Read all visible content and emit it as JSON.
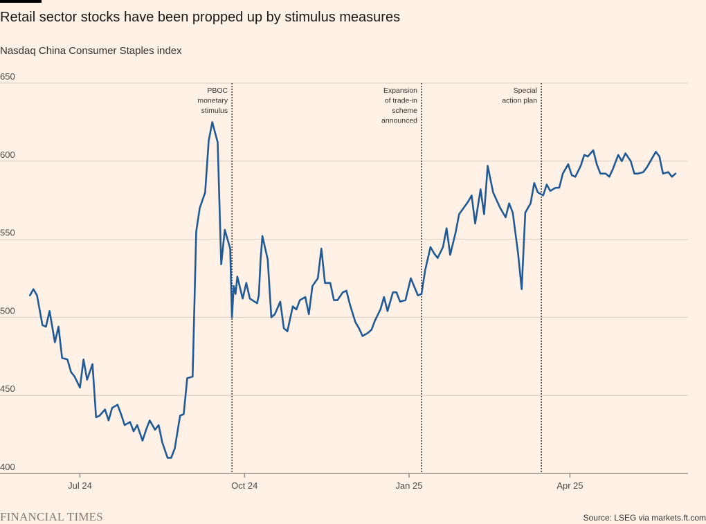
{
  "header": {
    "title": "Retail sector stocks have been propped up by stimulus measures",
    "subtitle": "Nasdaq China Consumer Staples index"
  },
  "footer": {
    "logo": "FINANCIAL TIMES",
    "source": "Source: LSEG via markets.ft.com"
  },
  "colors": {
    "background": "#fff1e5",
    "line": "#1f5a96",
    "grid": "#d9cbbf",
    "axis": "#66605c"
  },
  "chart_data": {
    "type": "line",
    "title": "Retail sector stocks have been propped up by stimulus measures",
    "subtitle": "Nasdaq China Consumer Staples index",
    "xlabel": "",
    "ylabel": "",
    "ylim": [
      400,
      650
    ],
    "yticks": [
      400,
      450,
      500,
      550,
      600,
      650
    ],
    "xlim": [
      "2024-06-01",
      "2025-06-06"
    ],
    "xticks": [
      {
        "label": "Jul 24",
        "date": "2024-07-01"
      },
      {
        "label": "Oct 24",
        "date": "2024-10-01"
      },
      {
        "label": "Jan 25",
        "date": "2025-01-01"
      },
      {
        "label": "Apr 25",
        "date": "2025-04-01"
      }
    ],
    "grid": true,
    "annotations": [
      {
        "date": "2024-09-24",
        "lines": [
          "PBOC",
          "monetary",
          "stimulus"
        ]
      },
      {
        "date": "2025-01-08",
        "lines": [
          "Expansion",
          "of trade-in",
          "scheme",
          "announced"
        ]
      },
      {
        "date": "2025-03-16",
        "lines": [
          "Special",
          "action plan"
        ]
      }
    ],
    "series": [
      {
        "x": [
          "2024-06-03",
          "2024-06-05",
          "2024-06-07",
          "2024-06-10",
          "2024-06-12",
          "2024-06-14",
          "2024-06-17",
          "2024-06-19",
          "2024-06-21",
          "2024-06-24",
          "2024-06-26",
          "2024-06-28",
          "2024-07-01",
          "2024-07-03",
          "2024-07-05",
          "2024-07-08",
          "2024-07-10",
          "2024-07-12",
          "2024-07-15",
          "2024-07-17",
          "2024-07-19",
          "2024-07-22",
          "2024-07-24",
          "2024-07-26",
          "2024-07-29",
          "2024-07-31",
          "2024-08-02",
          "2024-08-05",
          "2024-08-07",
          "2024-08-09",
          "2024-08-12",
          "2024-08-14",
          "2024-08-16",
          "2024-08-19",
          "2024-08-21",
          "2024-08-23",
          "2024-08-26",
          "2024-08-28",
          "2024-08-30",
          "2024-09-02",
          "2024-09-04",
          "2024-09-06",
          "2024-09-09",
          "2024-09-11",
          "2024-09-13",
          "2024-09-16",
          "2024-09-18",
          "2024-09-20",
          "2024-09-23",
          "2024-09-24",
          "2024-09-25",
          "2024-09-26",
          "2024-09-27",
          "2024-09-30",
          "2024-10-02",
          "2024-10-04",
          "2024-10-08",
          "2024-10-09",
          "2024-10-10",
          "2024-10-11",
          "2024-10-14",
          "2024-10-16",
          "2024-10-18",
          "2024-10-21",
          "2024-10-23",
          "2024-10-25",
          "2024-10-28",
          "2024-10-30",
          "2024-11-01",
          "2024-11-04",
          "2024-11-06",
          "2024-11-08",
          "2024-11-11",
          "2024-11-13",
          "2024-11-15",
          "2024-11-18",
          "2024-11-20",
          "2024-11-22",
          "2024-11-25",
          "2024-11-27",
          "2024-11-29",
          "2024-12-02",
          "2024-12-04",
          "2024-12-06",
          "2024-12-09",
          "2024-12-11",
          "2024-12-13",
          "2024-12-16",
          "2024-12-18",
          "2024-12-20",
          "2024-12-23",
          "2024-12-25",
          "2024-12-27",
          "2024-12-30",
          "2025-01-02",
          "2025-01-06",
          "2025-01-08",
          "2025-01-10",
          "2025-01-13",
          "2025-01-15",
          "2025-01-17",
          "2025-01-20",
          "2025-01-22",
          "2025-01-24",
          "2025-01-27",
          "2025-01-29",
          "2025-02-03",
          "2025-02-05",
          "2025-02-07",
          "2025-02-10",
          "2025-02-12",
          "2025-02-14",
          "2025-02-17",
          "2025-02-19",
          "2025-02-21",
          "2025-02-24",
          "2025-02-26",
          "2025-02-28",
          "2025-03-03",
          "2025-03-05",
          "2025-03-07",
          "2025-03-10",
          "2025-03-12",
          "2025-03-14",
          "2025-03-17",
          "2025-03-19",
          "2025-03-21",
          "2025-03-24",
          "2025-03-26",
          "2025-03-28",
          "2025-03-31",
          "2025-04-02",
          "2025-04-04",
          "2025-04-07",
          "2025-04-09",
          "2025-04-11",
          "2025-04-14",
          "2025-04-16",
          "2025-04-18",
          "2025-04-21",
          "2025-04-23",
          "2025-04-25",
          "2025-04-28",
          "2025-04-30",
          "2025-05-02",
          "2025-05-05",
          "2025-05-07",
          "2025-05-09",
          "2025-05-12",
          "2025-05-14",
          "2025-05-16",
          "2025-05-19",
          "2025-05-21",
          "2025-05-23",
          "2025-05-26",
          "2025-05-28",
          "2025-05-30"
        ],
        "values": [
          514,
          518,
          514,
          495,
          494,
          504,
          484,
          494,
          474,
          473,
          465,
          462,
          455,
          473,
          460,
          470,
          436,
          437,
          441,
          434,
          442,
          444,
          438,
          431,
          433,
          427,
          431,
          421,
          428,
          434,
          428,
          431,
          420,
          410,
          410,
          416,
          437,
          438,
          461,
          462,
          555,
          570,
          580,
          613,
          625,
          612,
          534,
          556,
          544,
          500,
          520,
          515,
          526,
          512,
          522,
          512,
          509,
          514,
          537,
          552,
          537,
          500,
          502,
          510,
          493,
          491,
          507,
          505,
          511,
          513,
          502,
          520,
          525,
          544,
          522,
          522,
          511,
          511,
          516,
          517,
          508,
          497,
          493,
          488,
          490,
          492,
          498,
          505,
          513,
          504,
          516,
          516,
          510,
          511,
          525,
          514,
          515,
          530,
          545,
          541,
          538,
          545,
          557,
          540,
          554,
          566,
          574,
          578,
          560,
          582,
          566,
          597,
          580,
          575,
          570,
          564,
          573,
          567,
          541,
          518,
          567,
          573,
          586,
          580,
          578,
          585,
          581,
          583,
          583,
          592,
          598,
          591,
          590,
          597,
          604,
          603,
          607,
          598,
          592,
          592,
          590,
          595,
          604,
          600,
          605,
          600,
          592,
          592,
          593,
          596,
          600,
          606,
          603,
          592,
          593,
          590,
          592
        ],
        "note": "approximate daily closes read from the chart"
      }
    ]
  }
}
